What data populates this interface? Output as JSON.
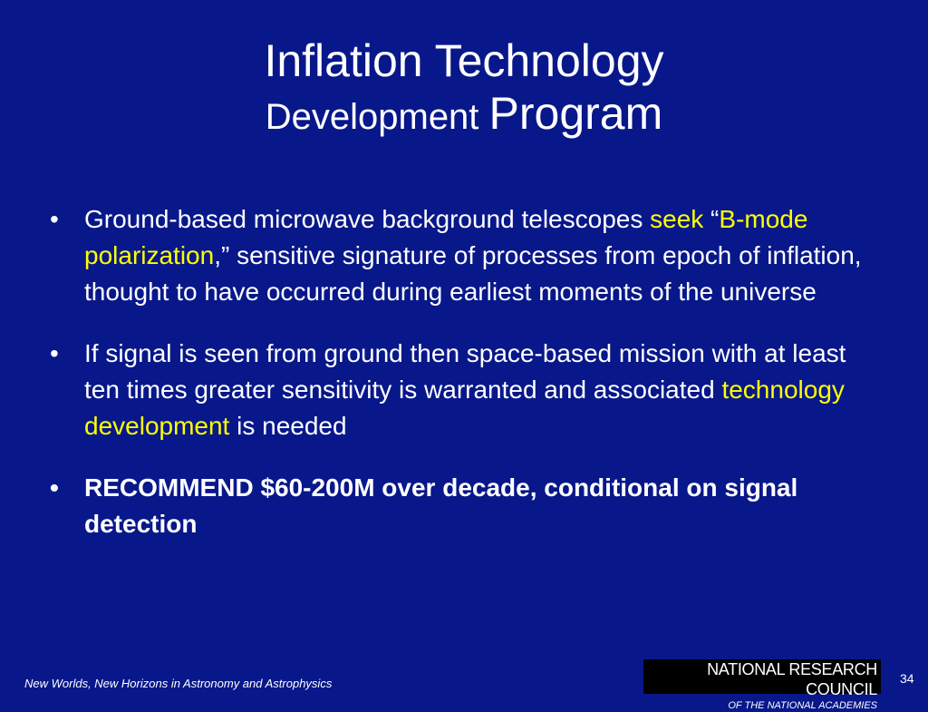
{
  "title": {
    "line1": "Inflation Technology",
    "line2": [
      {
        "text": "Development ",
        "size": "small"
      },
      {
        "text": "Program",
        "size": "large"
      }
    ]
  },
  "bullets": [
    {
      "bold": false,
      "runs": [
        {
          "text": "Ground-based microwave background telescopes ",
          "color": "#ffffff"
        },
        {
          "text": "seek",
          "color": "#ffff00"
        },
        {
          "text": " “",
          "color": "#ffffff"
        },
        {
          "text": "B-mode polarization",
          "color": "#ffff00"
        },
        {
          "text": ",” sensitive signature of processes from epoch of inflation, thought to have occurred during earliest moments of the universe",
          "color": "#ffffff"
        }
      ]
    },
    {
      "bold": false,
      "runs": [
        {
          "text": "If signal is seen from ground then space-based mission with at least ten times greater sensitivity is warranted and associated ",
          "color": "#ffffff"
        },
        {
          "text": "technology development",
          "color": "#ffff00"
        },
        {
          "text": " is needed",
          "color": "#ffffff"
        }
      ]
    },
    {
      "bold": true,
      "runs": [
        {
          "text": "RECOMMEND $60-200M over decade, conditional on signal detection",
          "color": "#ffffff"
        }
      ]
    }
  ],
  "footer": {
    "caption": "New Worlds, New Horizons in Astronomy and Astrophysics",
    "logo_line1": "NATIONAL RESEARCH COUNCIL",
    "logo_line2": "OF THE NATIONAL ACADEMIES",
    "page_number": "34"
  }
}
